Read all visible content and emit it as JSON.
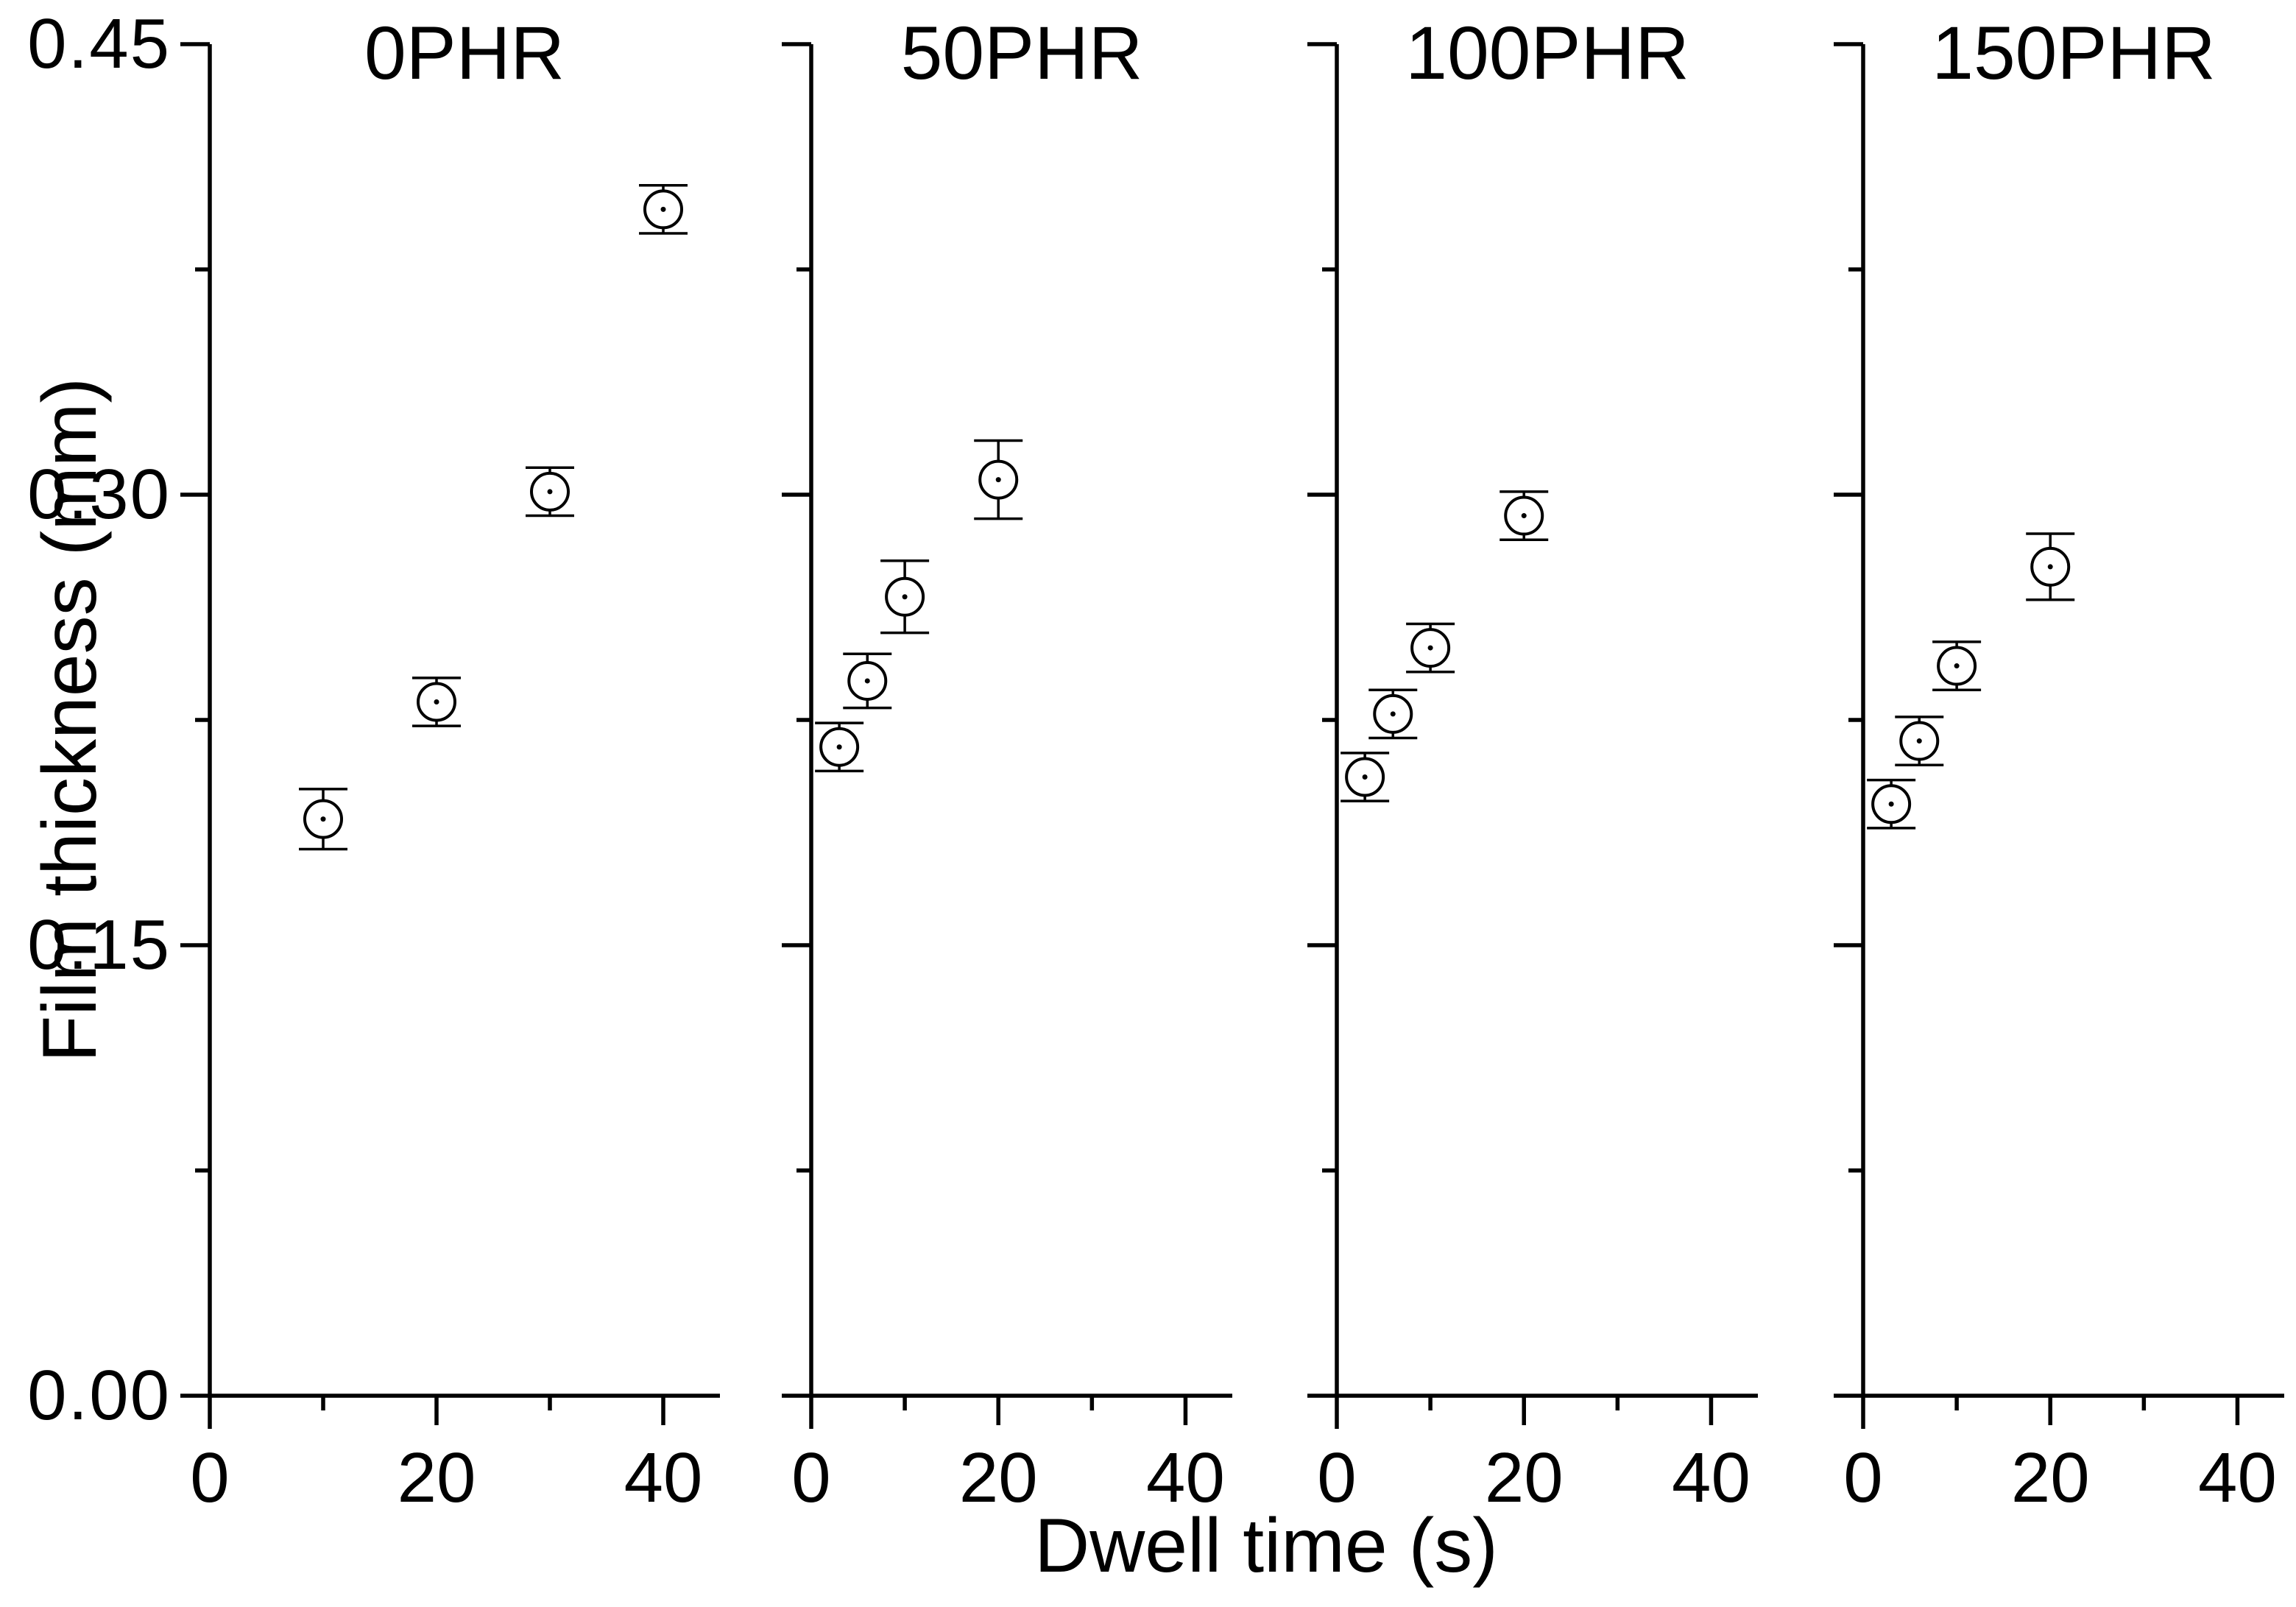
{
  "figure": {
    "background_color": "#ffffff",
    "foreground_color": "#000000",
    "y_axis": {
      "label": "Film thickness (mm)",
      "tick_labels": [
        "0.45",
        "0.30",
        "0.15",
        "0.00"
      ],
      "tick_values": [
        0.45,
        0.3,
        0.15,
        0.0
      ],
      "minor_tick_values": [
        0.375,
        0.225,
        0.075
      ],
      "range": [
        0,
        0.45
      ]
    },
    "x_axis": {
      "label": "Dwell time (s)",
      "tick_labels": [
        "0",
        "20",
        "40"
      ],
      "tick_values": [
        0,
        20,
        40
      ],
      "minor_tick_values": [
        10,
        30
      ],
      "range": [
        0,
        45
      ]
    },
    "marker": {
      "shape": "open-circle-with-center-dot",
      "stroke_color": "#000000",
      "fill_color": "#ffffff"
    },
    "legend": "none",
    "grid": "off"
  },
  "chart_data": [
    {
      "type": "scatter",
      "title": "0PHR",
      "xlabel": "Dwell time (s)",
      "ylabel": "Film thickness (mm)",
      "x": [
        10,
        20,
        30,
        40
      ],
      "y": [
        0.192,
        0.231,
        0.301,
        0.395
      ],
      "y_err": [
        0.01,
        0.008,
        0.008,
        0.008
      ],
      "xlim": [
        0,
        45
      ],
      "ylim": [
        0,
        0.45
      ]
    },
    {
      "type": "scatter",
      "title": "50PHR",
      "xlabel": "Dwell time (s)",
      "ylabel": "Film thickness (mm)",
      "x": [
        3,
        6,
        10,
        20
      ],
      "y": [
        0.216,
        0.238,
        0.266,
        0.305
      ],
      "y_err": [
        0.008,
        0.009,
        0.012,
        0.013
      ],
      "xlim": [
        0,
        45
      ],
      "ylim": [
        0,
        0.45
      ]
    },
    {
      "type": "scatter",
      "title": "100PHR",
      "xlabel": "Dwell time (s)",
      "ylabel": "Film thickness (mm)",
      "x": [
        3,
        6,
        10,
        20
      ],
      "y": [
        0.206,
        0.227,
        0.249,
        0.293
      ],
      "y_err": [
        0.008,
        0.008,
        0.008,
        0.008
      ],
      "xlim": [
        0,
        45
      ],
      "ylim": [
        0,
        0.45
      ]
    },
    {
      "type": "scatter",
      "title": "150PHR",
      "xlabel": "Dwell time (s)",
      "ylabel": "Film thickness (mm)",
      "x": [
        3,
        6,
        10,
        20
      ],
      "y": [
        0.197,
        0.218,
        0.243,
        0.276
      ],
      "y_err": [
        0.008,
        0.008,
        0.008,
        0.011
      ],
      "xlim": [
        0,
        45
      ],
      "ylim": [
        0,
        0.45
      ]
    }
  ]
}
